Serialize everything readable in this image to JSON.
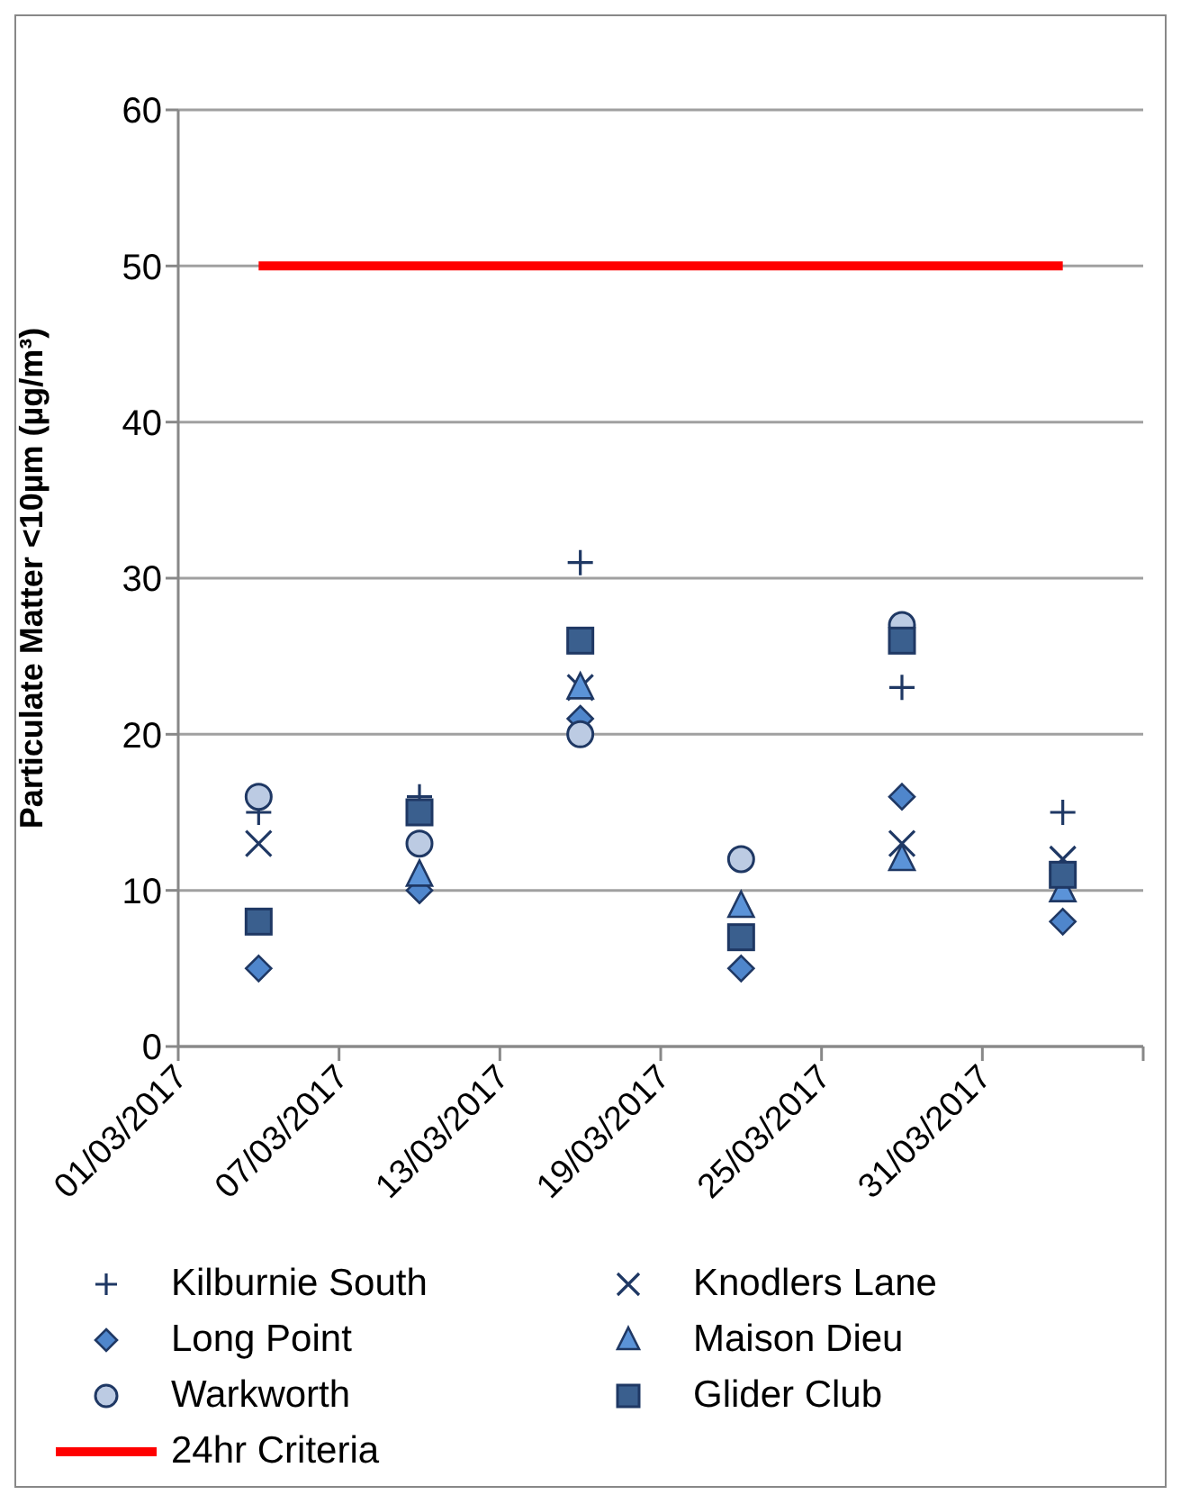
{
  "chart_data": {
    "type": "scatter",
    "ylabel": "Particulate Matter <10µm (µg/m³)",
    "x": [
      "2017-03-04",
      "2017-03-10",
      "2017-03-16",
      "2017-03-22",
      "2017-03-28",
      "2017-04-03"
    ],
    "series": [
      {
        "name": "Kilburnie South",
        "marker": "plus",
        "color": "#1f3864",
        "values": [
          15,
          16,
          31,
          null,
          23,
          15
        ]
      },
      {
        "name": "Knodlers Lane",
        "marker": "cross",
        "color": "#1f3864",
        "values": [
          13,
          null,
          23,
          null,
          13,
          12
        ]
      },
      {
        "name": "Long Point",
        "marker": "diamond",
        "color": "#4f86cc",
        "values": [
          5,
          10,
          21,
          5,
          16,
          8
        ]
      },
      {
        "name": "Maison Dieu",
        "marker": "triangle",
        "color": "#5b93d8",
        "values": [
          null,
          11,
          23,
          9,
          12,
          10
        ]
      },
      {
        "name": "Warkworth",
        "marker": "circle",
        "color": "#bccbe3",
        "values": [
          16,
          13,
          20,
          12,
          27,
          null
        ]
      },
      {
        "name": "Glider Club",
        "marker": "square",
        "color": "#3a5f8e",
        "values": [
          8,
          15,
          26,
          7,
          26,
          11
        ]
      },
      {
        "name": "24hr Criteria",
        "type": "line",
        "marker": "none",
        "line_style": "solid",
        "color": "#ff0000",
        "x": [
          "2017-03-04",
          "2017-04-03"
        ],
        "values": [
          50,
          50
        ]
      }
    ],
    "xlim": [
      "2017-03-01",
      "2017-04-06"
    ],
    "xticks": [
      {
        "value": "2017-03-01",
        "label": "01/03/2017"
      },
      {
        "value": "2017-03-07",
        "label": "07/03/2017"
      },
      {
        "value": "2017-03-13",
        "label": "13/03/2017"
      },
      {
        "value": "2017-03-19",
        "label": "19/03/2017"
      },
      {
        "value": "2017-03-25",
        "label": "25/03/2017"
      },
      {
        "value": "2017-03-31",
        "label": "31/03/2017"
      },
      {
        "value": "2017-04-06",
        "label": null
      }
    ],
    "ylim": [
      0,
      60
    ],
    "yticks": [
      0,
      10,
      20,
      30,
      40,
      50,
      60
    ],
    "grid": "y",
    "legend": "bottom"
  }
}
